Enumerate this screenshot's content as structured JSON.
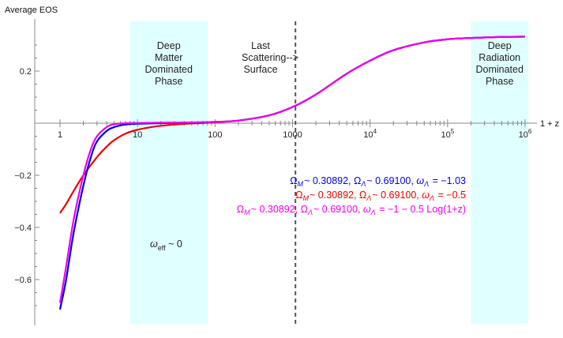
{
  "chart_data": {
    "type": "line",
    "xscale": "log",
    "xlabel": "1 + z",
    "ylabel": "Average EOS",
    "xlim": [
      1,
      1000000
    ],
    "ylim": [
      -0.75,
      0.36
    ],
    "x_ticks": [
      {
        "value": 1,
        "label": "1"
      },
      {
        "value": 10,
        "label": "10"
      },
      {
        "value": 100,
        "label": "100"
      },
      {
        "value": 1000,
        "label": "1000"
      },
      {
        "value": 10000,
        "label": "10",
        "sup": "4"
      },
      {
        "value": 100000,
        "label": "10",
        "sup": "5"
      },
      {
        "value": 1000000,
        "label": "10",
        "sup": "6"
      }
    ],
    "y_ticks": [
      {
        "value": 0.2,
        "label": "0.2"
      },
      {
        "value": -0.2,
        "label": "−0.2"
      },
      {
        "value": -0.4,
        "label": "−0.4"
      },
      {
        "value": -0.6,
        "label": "−0.6"
      }
    ],
    "grid": false,
    "regions": [
      {
        "x_from": 8,
        "x_to": 80,
        "color": "#E0FFFF",
        "label_lines": [
          "Deep",
          "Matter",
          "Dominated",
          "Phase"
        ]
      },
      {
        "x_from": 200000,
        "x_to": 1100000,
        "color": "#E0FFFF",
        "label_lines": [
          "Deep",
          "Radiation",
          "Dominated",
          "Phase"
        ]
      }
    ],
    "vline": {
      "x": 1090,
      "style": "dashed",
      "color": "#555555"
    },
    "annotations": [
      {
        "lines": [
          "Last",
          "Scattering-->",
          "Surface"
        ]
      },
      {
        "text": "ω",
        "sub": "eff",
        "tail": " ~ 0"
      }
    ],
    "series": [
      {
        "name": "ΩM~ 0.30892, ΩΛ~ 0.69100, ωΛ = −1.03",
        "color": "#0000EE",
        "x": [
          1,
          1.2,
          1.5,
          2,
          2.5,
          3,
          4,
          5,
          7,
          10,
          20,
          50,
          100,
          200,
          500,
          1000,
          2000,
          5000,
          10000,
          20000,
          50000,
          100000,
          200000,
          500000,
          1000000
        ],
        "y": [
          -0.715,
          -0.6,
          -0.42,
          -0.24,
          -0.13,
          -0.07,
          -0.03,
          -0.015,
          -0.005,
          -0.002,
          0.0,
          0.002,
          0.005,
          0.01,
          0.03,
          0.062,
          0.11,
          0.19,
          0.24,
          0.28,
          0.31,
          0.322,
          0.327,
          0.331,
          0.332
        ]
      },
      {
        "name": "ΩM~ 0.30892, ΩΛ~ 0.69100, ωΛ = −0.5",
        "color": "#EE0000",
        "x": [
          1,
          1.2,
          1.5,
          2,
          3,
          4,
          5,
          7,
          10,
          15,
          20,
          30,
          50,
          100,
          200,
          500,
          1000,
          2000,
          5000,
          10000,
          20000,
          50000,
          100000,
          200000,
          500000,
          1000000
        ],
        "y": [
          -0.345,
          -0.31,
          -0.26,
          -0.2,
          -0.13,
          -0.09,
          -0.065,
          -0.04,
          -0.025,
          -0.015,
          -0.01,
          -0.005,
          -0.001,
          0.003,
          0.01,
          0.03,
          0.062,
          0.11,
          0.19,
          0.24,
          0.28,
          0.31,
          0.322,
          0.327,
          0.331,
          0.332
        ]
      },
      {
        "name": "ΩM~ 0.30892, ΩΛ~ 0.69100, ωΛ = −1 − 0.5 Log(1+z)",
        "color": "#EE00EE",
        "x": [
          1,
          1.2,
          1.5,
          2,
          2.5,
          3,
          4,
          5,
          7,
          10,
          20,
          50,
          100,
          200,
          500,
          1000,
          2000,
          5000,
          10000,
          20000,
          50000,
          100000,
          200000,
          500000,
          1000000
        ],
        "y": [
          -0.69,
          -0.55,
          -0.37,
          -0.2,
          -0.1,
          -0.05,
          -0.015,
          -0.004,
          0.0,
          0.001,
          0.002,
          0.003,
          0.005,
          0.01,
          0.03,
          0.062,
          0.11,
          0.19,
          0.24,
          0.28,
          0.31,
          0.322,
          0.327,
          0.331,
          0.332
        ]
      }
    ],
    "legend_placement": "center",
    "legend": [
      {
        "color": "#0000EE",
        "text": "Ω_M~ 0.30892, Ω_Λ~ 0.69100, ω_Λ = −1.03",
        "parts": [
          [
            "Ω",
            ""
          ],
          [
            "M",
            "sub"
          ],
          [
            "~ 0.30892, Ω",
            ""
          ],
          [
            "Λ",
            "sub"
          ],
          [
            "~ 0.69100, ",
            ""
          ],
          [
            "ω",
            "it"
          ],
          [
            "Λ",
            "sub"
          ],
          [
            " = −1.03",
            ""
          ]
        ]
      },
      {
        "color": "#EE0000",
        "text": "Ω_M~ 0.30892, Ω_Λ~ 0.69100, ω_Λ = −0.5",
        "parts": [
          [
            "Ω",
            ""
          ],
          [
            "M",
            "sub"
          ],
          [
            "~ 0.30892, Ω",
            ""
          ],
          [
            "Λ",
            "sub"
          ],
          [
            "~ 0.69100, ",
            ""
          ],
          [
            "ω",
            "it"
          ],
          [
            "Λ",
            "sub"
          ],
          [
            " = −0.5",
            ""
          ]
        ]
      },
      {
        "color": "#EE00EE",
        "text": "Ω_M~ 0.30892, Ω_Λ~ 0.69100, ω_Λ = −1 − 0.5 Log(1+z)",
        "parts": [
          [
            "Ω",
            ""
          ],
          [
            "M",
            "sub"
          ],
          [
            "~ 0.30892, Ω",
            ""
          ],
          [
            "Λ",
            "sub"
          ],
          [
            "~ 0.69100, ",
            ""
          ],
          [
            "ω",
            "it"
          ],
          [
            "Λ",
            "sub"
          ],
          [
            " = −1 − 0.5 Log(1+z)",
            ""
          ]
        ]
      }
    ]
  }
}
